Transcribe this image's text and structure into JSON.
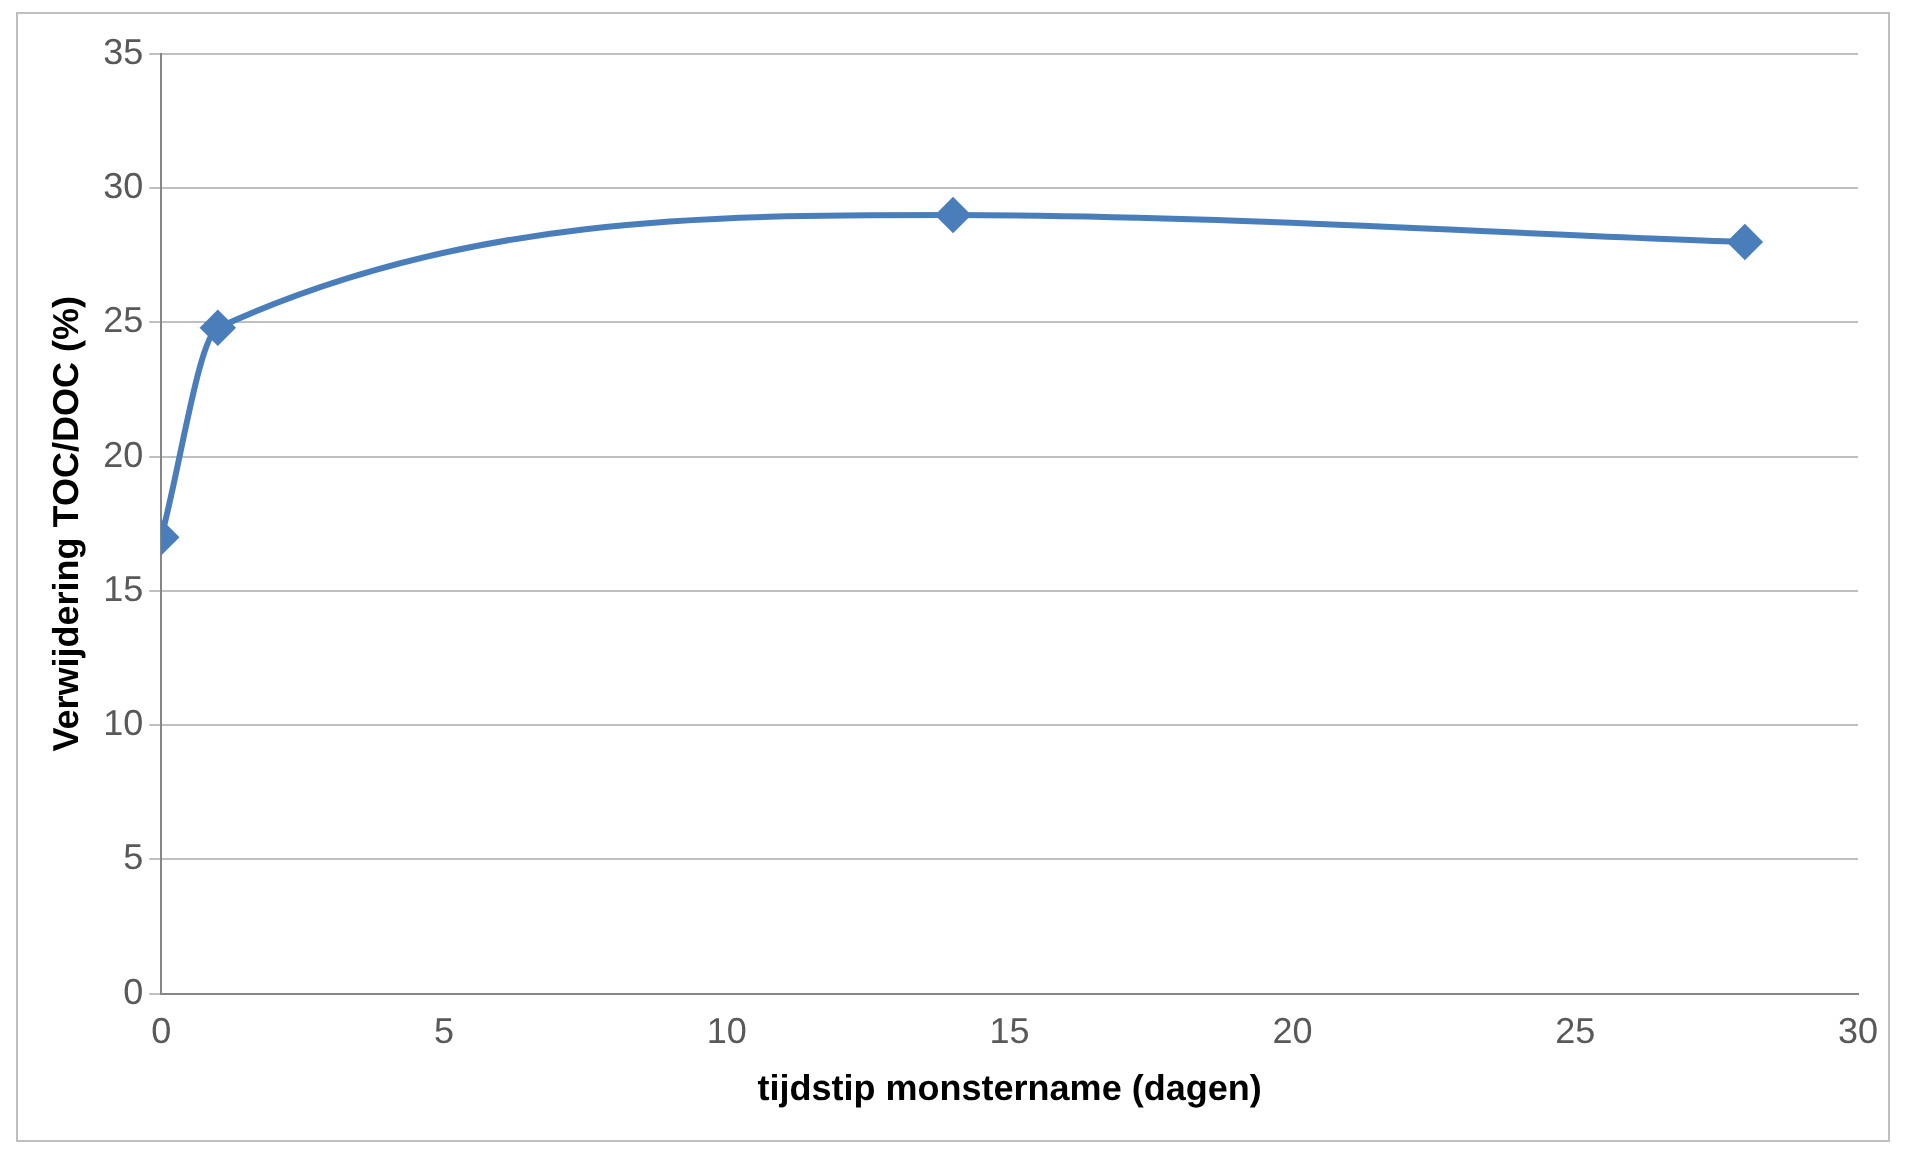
{
  "chart_data": {
    "type": "line",
    "xlabel": "tijdstip monstername (dagen)",
    "ylabel": "Verwijdering TOC/DOC (%)",
    "x": [
      0,
      1,
      14,
      28
    ],
    "series": [
      {
        "color": "#4a7ebb",
        "values": [
          17,
          24.8,
          29,
          28
        ]
      }
    ],
    "xlim": [
      0,
      30
    ],
    "xticks": [
      0,
      5,
      10,
      15,
      20,
      25,
      30
    ],
    "ylim": [
      0,
      35
    ],
    "yticks": [
      0,
      5,
      10,
      15,
      20,
      25,
      30,
      35
    ],
    "grid": "y",
    "legend": false,
    "marker": "diamond",
    "line_style": "solid"
  }
}
